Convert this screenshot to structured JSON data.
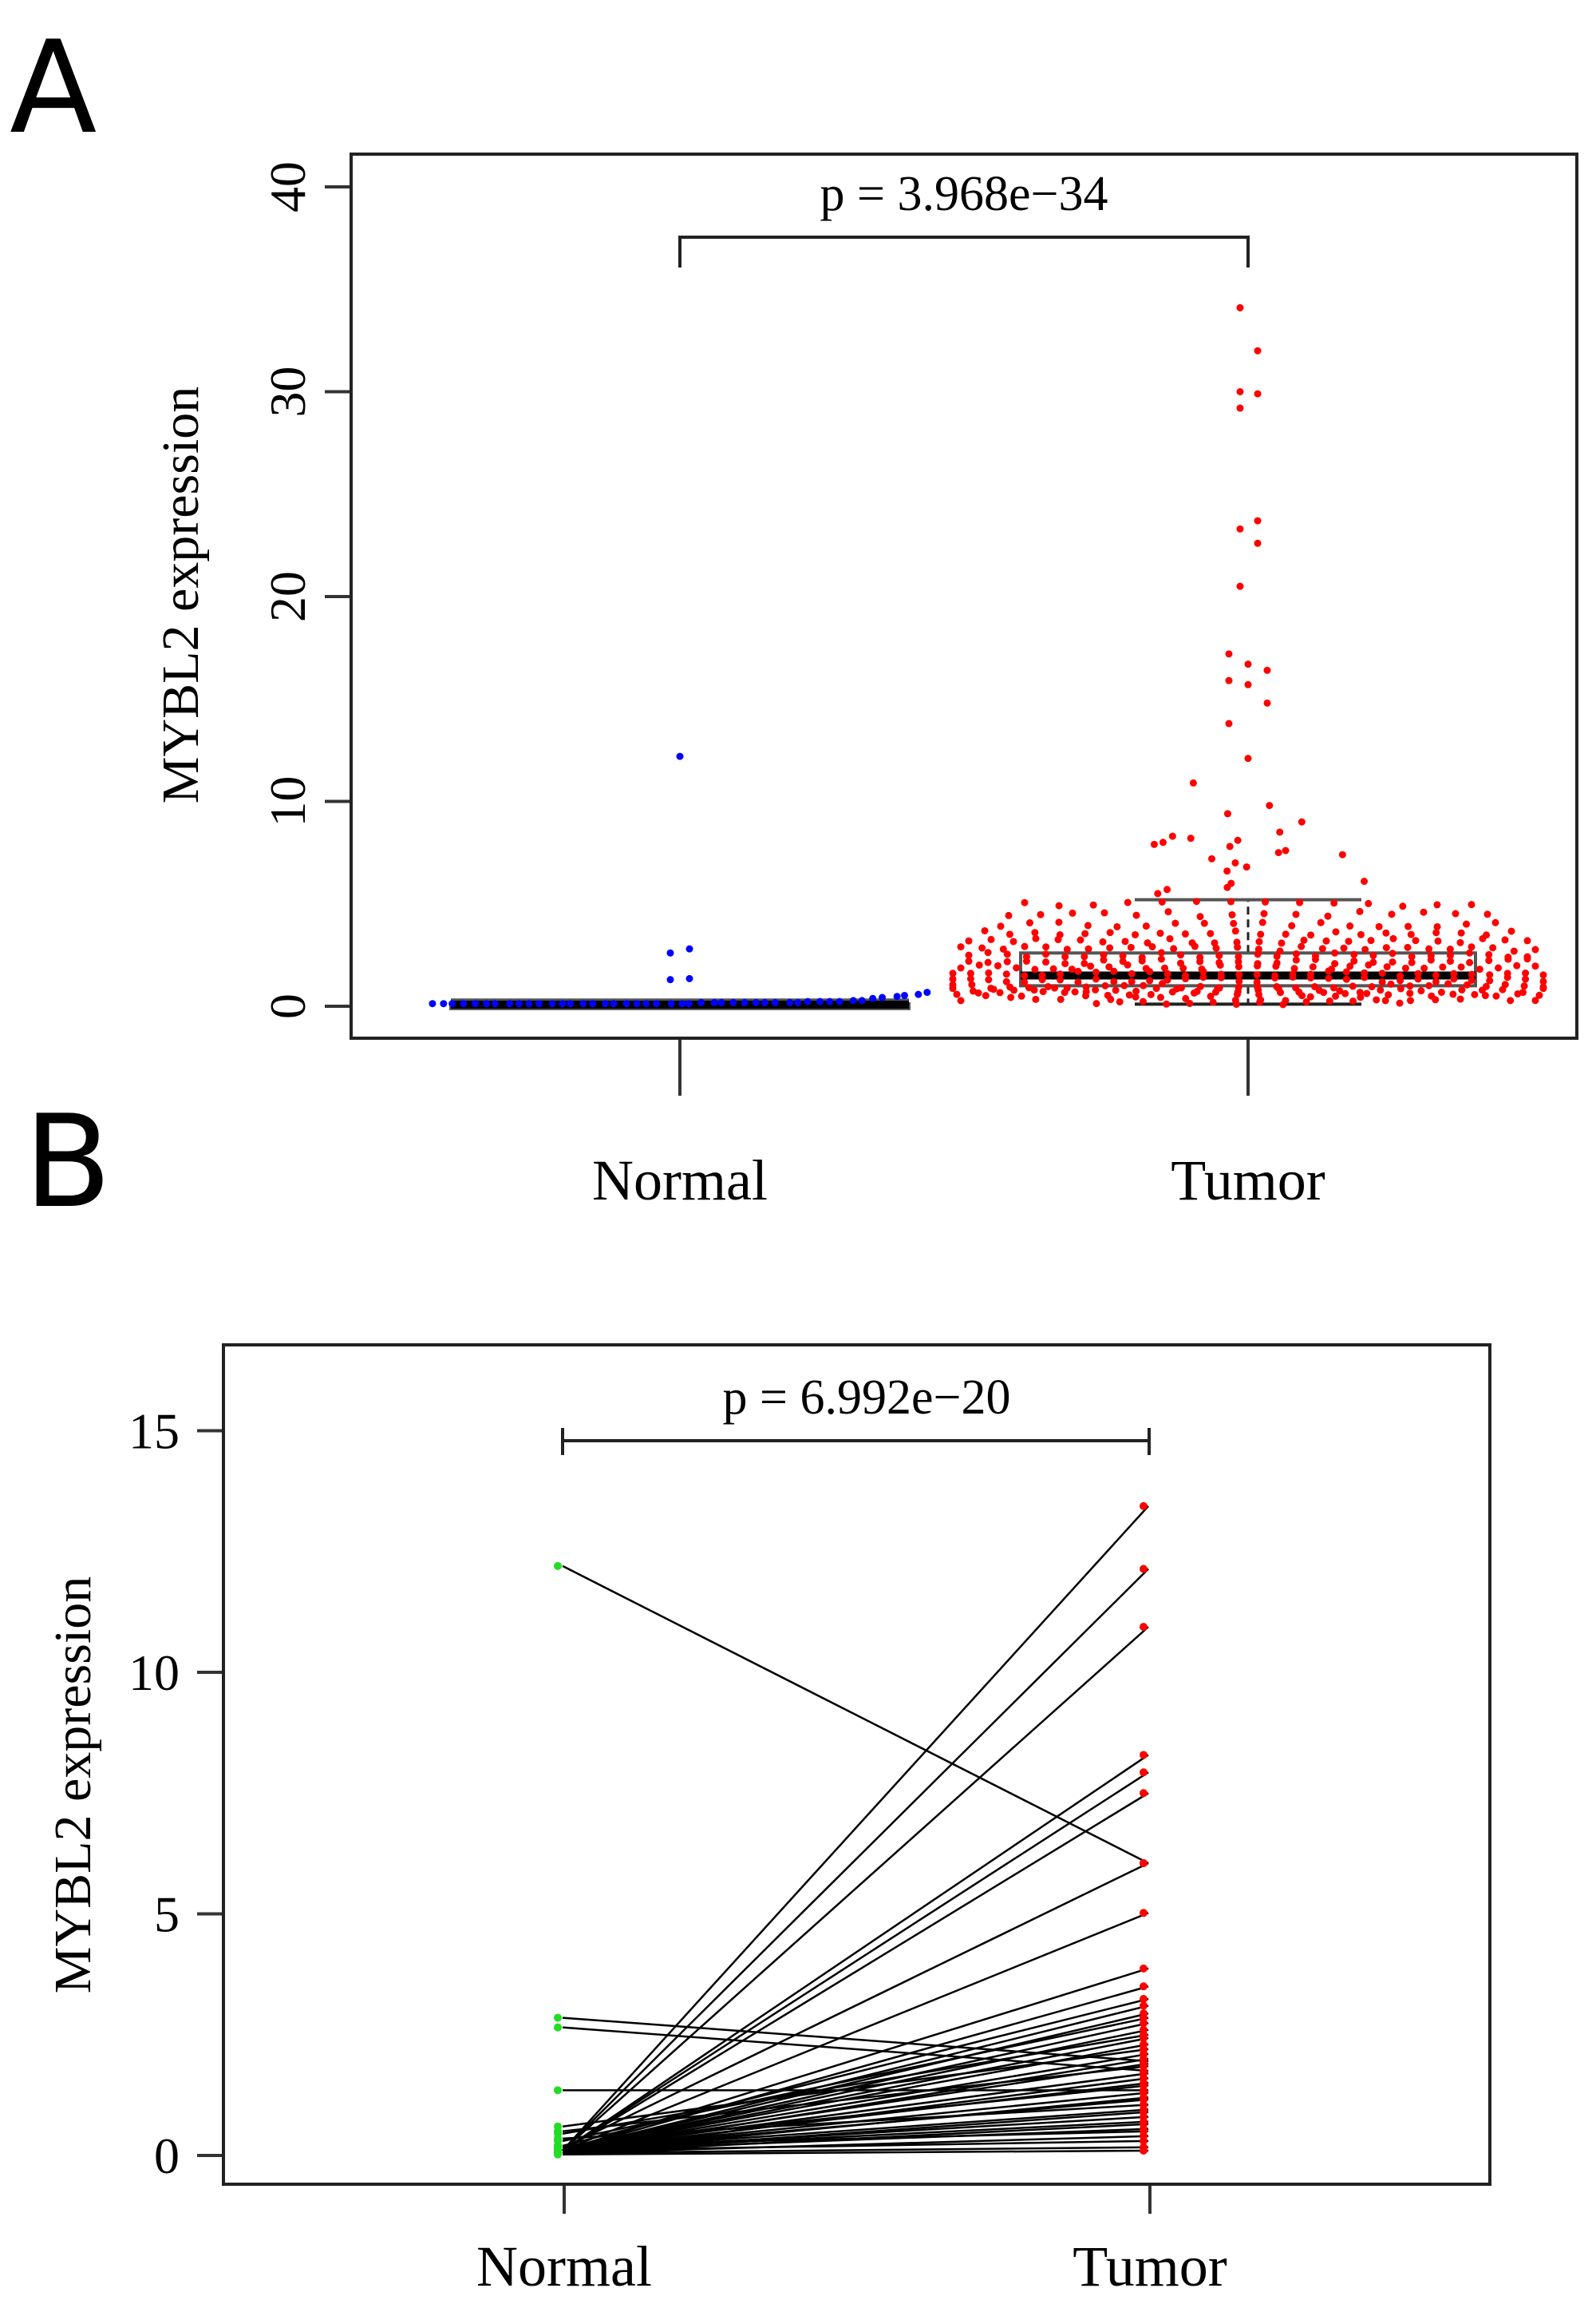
{
  "figure": {
    "panels": [
      {
        "id": "A",
        "label": "A"
      },
      {
        "id": "B",
        "label": "B"
      }
    ]
  },
  "colors": {
    "normal_A": "#0000ff",
    "tumor_A": "#ff0000",
    "normal_B": "#22dd22",
    "tumor_B": "#ff0000",
    "box": "#555555",
    "pair_line": "#000000"
  },
  "chart_data": [
    {
      "panel": "A",
      "type": "scatter",
      "subtype": "beeswarm-boxplot",
      "title": "",
      "xlabel": "",
      "ylabel": "MYBL2 expression",
      "categories": [
        "Normal",
        "Tumor"
      ],
      "ylim": [
        -1.5,
        42
      ],
      "yticks": [
        0,
        10,
        20,
        30,
        40
      ],
      "ytick_labels": [
        "0",
        "10",
        "20",
        "30",
        "40"
      ],
      "grid": false,
      "legend": "none",
      "annotation": {
        "text": "p = 3.968e−34",
        "type": "significance-bracket",
        "between": [
          "Normal",
          "Tumor"
        ]
      },
      "boxplots": [
        {
          "category": "Normal",
          "whisker_low": 0.05,
          "q1": 0.05,
          "median": 0.08,
          "q3": 0.12,
          "whisker_high": 0.3
        },
        {
          "category": "Tumor",
          "whisker_low": 0.1,
          "q1": 1.0,
          "median": 1.5,
          "q3": 2.6,
          "whisker_high": 5.2
        }
      ],
      "series": [
        {
          "name": "Normal",
          "color": "blue",
          "outliers": [
            12.2,
            2.8,
            2.6,
            1.35,
            1.3
          ],
          "bulk_summary": "about 47 points clustered between 0 and 0.5",
          "bulk_values": [
            0.05,
            0.05,
            0.05,
            0.05,
            0.05,
            0.05,
            0.05,
            0.05,
            0.05,
            0.05,
            0.05,
            0.05,
            0.05,
            0.05,
            0.05,
            0.05,
            0.05,
            0.05,
            0.05,
            0.05,
            0.05,
            0.05,
            0.05,
            0.05,
            0.05,
            0.1,
            0.1,
            0.1,
            0.1,
            0.1,
            0.1,
            0.1,
            0.1,
            0.1,
            0.1,
            0.15,
            0.15,
            0.15,
            0.15,
            0.2,
            0.2,
            0.3,
            0.35,
            0.4,
            0.45,
            0.5,
            0.6
          ]
        },
        {
          "name": "Tumor",
          "color": "red",
          "outliers": [
            34.1,
            32.0,
            30.0,
            29.9,
            29.2,
            23.7,
            23.3,
            22.6,
            20.5,
            17.2,
            16.7,
            16.4,
            15.9,
            15.7,
            14.8,
            13.8,
            12.1,
            10.9,
            9.8,
            9.4,
            9.0,
            8.5,
            8.3,
            8.2,
            8.1,
            8.0,
            7.9,
            7.8,
            7.6,
            7.5,
            7.4,
            7.2,
            7.0,
            6.8,
            6.6,
            6.1,
            6.0,
            5.8,
            5.7,
            5.5
          ],
          "bulk_summary": "about 450 points between 0 and 5.2, densest at 0.5-2"
        }
      ]
    },
    {
      "panel": "B",
      "type": "line",
      "subtype": "paired-dot-line",
      "title": "",
      "xlabel": "",
      "ylabel": "MYBL2 expression",
      "categories": [
        "Normal",
        "Tumor"
      ],
      "ylim": [
        -0.5,
        16.7
      ],
      "yticks": [
        0,
        5,
        10,
        15
      ],
      "ytick_labels": [
        "0",
        "5",
        "10",
        "15"
      ],
      "grid": false,
      "legend": "none",
      "annotation": {
        "text": "p = 6.992e−20",
        "type": "significance-bracket",
        "between": [
          "Normal",
          "Tumor"
        ]
      },
      "pairs": [
        {
          "normal": 12.2,
          "tumor": 6.05
        },
        {
          "normal": 2.85,
          "tumor": 1.95
        },
        {
          "normal": 2.65,
          "tumor": 1.75
        },
        {
          "normal": 1.35,
          "tumor": 1.35
        },
        {
          "normal": 0.1,
          "tumor": 13.44
        },
        {
          "normal": 0.1,
          "tumor": 12.14
        },
        {
          "normal": 0.1,
          "tumor": 10.94
        },
        {
          "normal": 0.1,
          "tumor": 8.29
        },
        {
          "normal": 0.1,
          "tumor": 7.93
        },
        {
          "normal": 0.1,
          "tumor": 7.5
        },
        {
          "normal": 0.15,
          "tumor": 6.05
        },
        {
          "normal": 0.1,
          "tumor": 5.02
        },
        {
          "normal": 0.1,
          "tumor": 3.87
        },
        {
          "normal": 0.1,
          "tumor": 3.5
        },
        {
          "normal": 0.2,
          "tumor": 3.24
        },
        {
          "normal": 0.1,
          "tumor": 3.1
        },
        {
          "normal": 0.1,
          "tumor": 2.94
        },
        {
          "normal": 0.3,
          "tumor": 2.85
        },
        {
          "normal": 0.1,
          "tumor": 2.74
        },
        {
          "normal": 0.1,
          "tumor": 2.6
        },
        {
          "normal": 0.45,
          "tumor": 2.5
        },
        {
          "normal": 0.1,
          "tumor": 2.43
        },
        {
          "normal": 0.1,
          "tumor": 2.3
        },
        {
          "normal": 0.6,
          "tumor": 2.2
        },
        {
          "normal": 0.1,
          "tumor": 2.1
        },
        {
          "normal": 0.05,
          "tumor": 2.0
        },
        {
          "normal": 0.1,
          "tumor": 1.9
        },
        {
          "normal": 0.5,
          "tumor": 1.85
        },
        {
          "normal": 0.1,
          "tumor": 1.7
        },
        {
          "normal": 0.05,
          "tumor": 1.6
        },
        {
          "normal": 0.1,
          "tumor": 1.5
        },
        {
          "normal": 0.2,
          "tumor": 1.45
        },
        {
          "normal": 0.1,
          "tumor": 1.3
        },
        {
          "normal": 0.05,
          "tumor": 1.2
        },
        {
          "normal": 0.1,
          "tumor": 1.16
        },
        {
          "normal": 0.35,
          "tumor": 1.05
        },
        {
          "normal": 0.1,
          "tumor": 0.95
        },
        {
          "normal": 0.05,
          "tumor": 0.9
        },
        {
          "normal": 0.1,
          "tumor": 0.8
        },
        {
          "normal": 0.1,
          "tumor": 0.7
        },
        {
          "normal": 0.05,
          "tumor": 0.65
        },
        {
          "normal": 0.1,
          "tumor": 0.55
        },
        {
          "normal": 0.2,
          "tumor": 0.5
        },
        {
          "normal": 0.05,
          "tumor": 0.4
        },
        {
          "normal": 0.1,
          "tumor": 0.3
        },
        {
          "normal": 0.05,
          "tumor": 0.17
        },
        {
          "normal": 0.02,
          "tumor": 0.1
        }
      ]
    }
  ]
}
